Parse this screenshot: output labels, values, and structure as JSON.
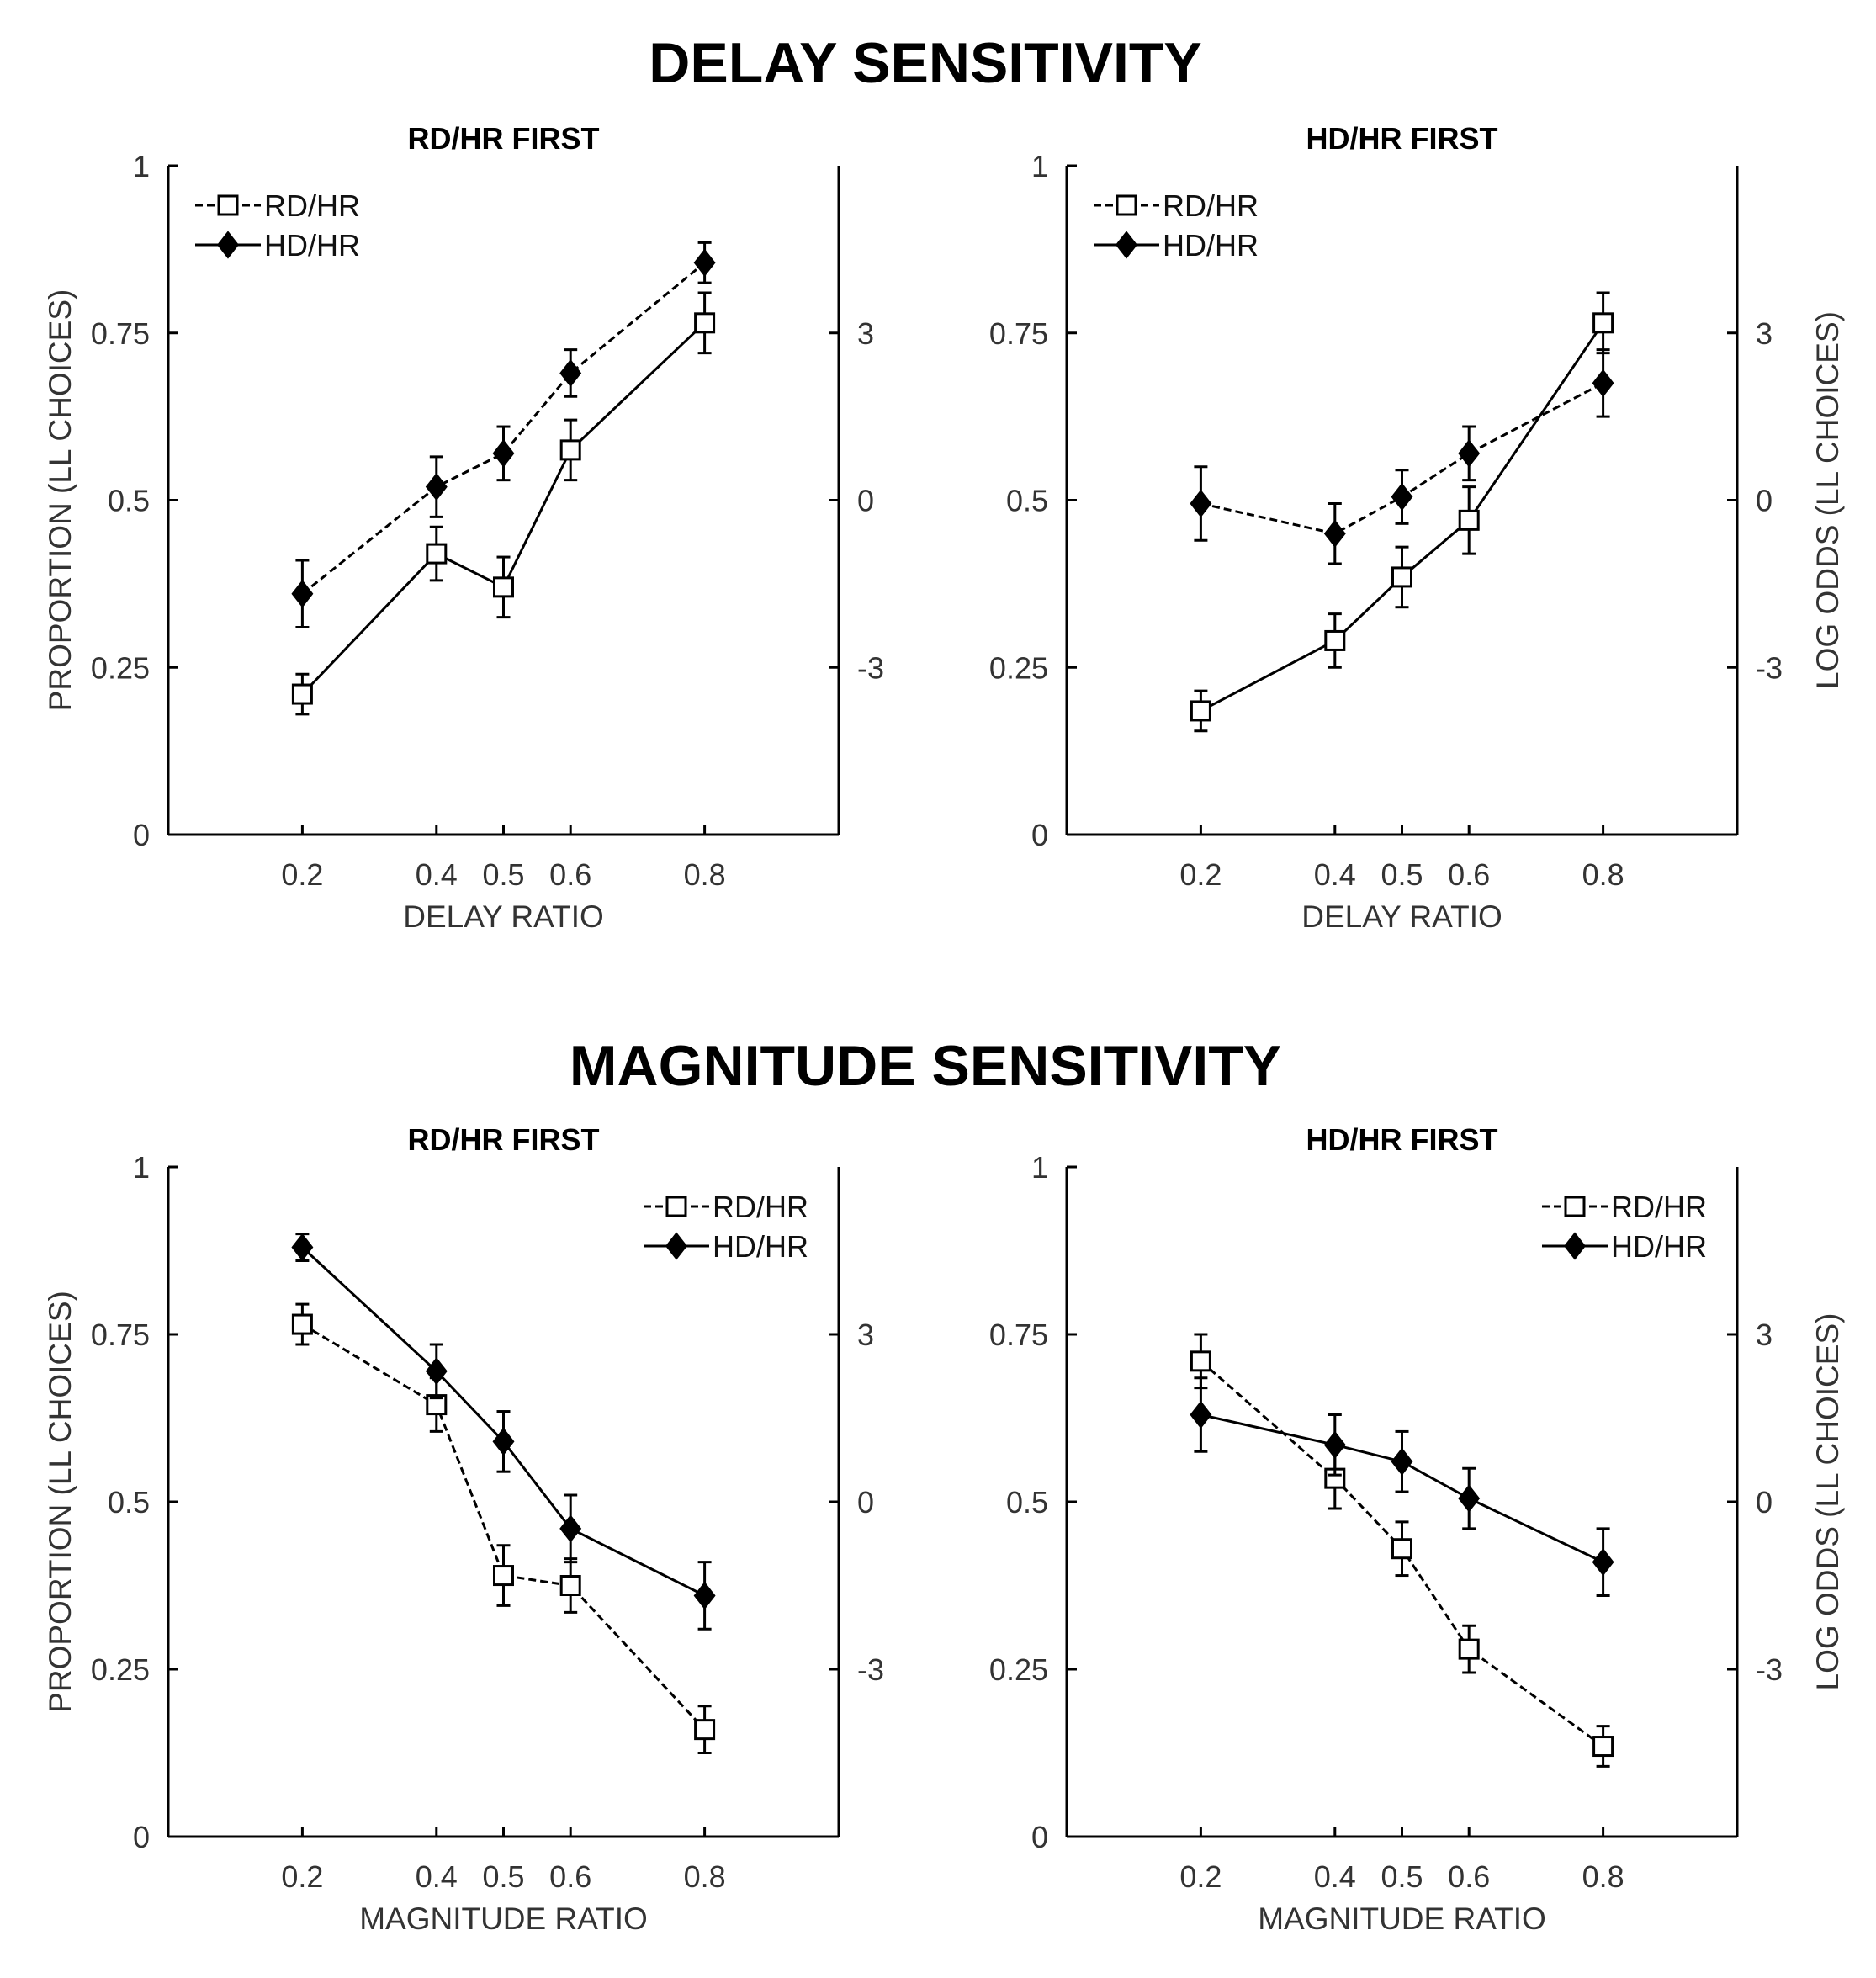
{
  "figure": {
    "delay_title": "DELAY SENSITIVITY",
    "magnitude_title": "MAGNITUDE SENSITIVITY"
  },
  "chart_data": [
    {
      "type": "line",
      "section": "DELAY SENSITIVITY",
      "title": "RD/HR FIRST",
      "xlabel": "DELAY RATIO",
      "ylabel": "PROPORTION (LL CHOICES)",
      "y2label": "",
      "x": [
        0.2,
        0.4,
        0.5,
        0.6,
        0.8
      ],
      "x_tick_labels": [
        "0.2",
        "0.4",
        "0.5",
        "0.6",
        "0.8"
      ],
      "xlim": [
        0.0,
        1.0
      ],
      "ylim": [
        0,
        1
      ],
      "y_tick_values": [
        0,
        0.25,
        0.5,
        0.75,
        1
      ],
      "y_tick_labels": [
        "0",
        "0.25",
        "0.5",
        "0.75",
        "1"
      ],
      "y2_tick_values": [
        0.25,
        0.5,
        0.75
      ],
      "y2_tick_labels": [
        "-3",
        "0",
        "3"
      ],
      "legend_position": "top-left",
      "series": [
        {
          "name": "RD/HR",
          "marker": "open-square",
          "line": "solid",
          "legend_line": "dashed",
          "values": [
            0.21,
            0.42,
            0.37,
            0.575,
            0.765
          ],
          "errors": [
            0.03,
            0.04,
            0.045,
            0.045,
            0.045
          ]
        },
        {
          "name": "HD/HR",
          "marker": "filled-diamond",
          "line": "dashed",
          "legend_line": "solid",
          "values": [
            0.36,
            0.52,
            0.57,
            0.69,
            0.855
          ],
          "errors": [
            0.05,
            0.045,
            0.04,
            0.035,
            0.03
          ]
        }
      ]
    },
    {
      "type": "line",
      "section": "DELAY SENSITIVITY",
      "title": "HD/HR FIRST",
      "xlabel": "DELAY RATIO",
      "ylabel": "",
      "y2label": "LOG ODDS (LL CHOICES)",
      "x": [
        0.2,
        0.4,
        0.5,
        0.6,
        0.8
      ],
      "x_tick_labels": [
        "0.2",
        "0.4",
        "0.5",
        "0.6",
        "0.8"
      ],
      "xlim": [
        0.0,
        1.0
      ],
      "ylim": [
        0,
        1
      ],
      "y_tick_values": [
        0,
        0.25,
        0.5,
        0.75,
        1
      ],
      "y_tick_labels": [
        "0",
        "0.25",
        "0.5",
        "0.75",
        "1"
      ],
      "y2_tick_values": [
        0.25,
        0.5,
        0.75
      ],
      "y2_tick_labels": [
        "-3",
        "0",
        "3"
      ],
      "legend_position": "top-left",
      "series": [
        {
          "name": "RD/HR",
          "marker": "open-square",
          "line": "solid",
          "legend_line": "dashed",
          "values": [
            0.185,
            0.29,
            0.385,
            0.47,
            0.765
          ],
          "errors": [
            0.03,
            0.04,
            0.045,
            0.05,
            0.045
          ]
        },
        {
          "name": "HD/HR",
          "marker": "filled-diamond",
          "line": "dashed",
          "legend_line": "solid",
          "values": [
            0.495,
            0.45,
            0.505,
            0.57,
            0.675
          ],
          "errors": [
            0.055,
            0.045,
            0.04,
            0.04,
            0.05
          ]
        }
      ]
    },
    {
      "type": "line",
      "section": "MAGNITUDE SENSITIVITY",
      "title": "RD/HR FIRST",
      "xlabel": "MAGNITUDE RATIO",
      "ylabel": "PROPORTION (LL CHOICES)",
      "y2label": "",
      "x": [
        0.2,
        0.4,
        0.5,
        0.6,
        0.8
      ],
      "x_tick_labels": [
        "0.2",
        "0.4",
        "0.5",
        "0.6",
        "0.8"
      ],
      "xlim": [
        0.0,
        1.0
      ],
      "ylim": [
        0,
        1
      ],
      "y_tick_values": [
        0,
        0.25,
        0.5,
        0.75,
        1
      ],
      "y_tick_labels": [
        "0",
        "0.25",
        "0.5",
        "0.75",
        "1"
      ],
      "y2_tick_values": [
        0.25,
        0.5,
        0.75
      ],
      "y2_tick_labels": [
        "-3",
        "0",
        "3"
      ],
      "legend_position": "top-right",
      "series": [
        {
          "name": "RD/HR",
          "marker": "open-square",
          "line": "dashed",
          "legend_line": "dashed",
          "values": [
            0.765,
            0.645,
            0.39,
            0.375,
            0.16
          ],
          "errors": [
            0.03,
            0.04,
            0.045,
            0.04,
            0.035
          ]
        },
        {
          "name": "HD/HR",
          "marker": "filled-diamond",
          "line": "solid",
          "legend_line": "solid",
          "values": [
            0.88,
            0.695,
            0.59,
            0.46,
            0.36
          ],
          "errors": [
            0.02,
            0.04,
            0.045,
            0.05,
            0.05
          ]
        }
      ]
    },
    {
      "type": "line",
      "section": "MAGNITUDE SENSITIVITY",
      "title": "HD/HR FIRST",
      "xlabel": "MAGNITUDE RATIO",
      "ylabel": "",
      "y2label": "LOG ODDS (LL CHOICES)",
      "x": [
        0.2,
        0.4,
        0.5,
        0.6,
        0.8
      ],
      "x_tick_labels": [
        "0.2",
        "0.4",
        "0.5",
        "0.6",
        "0.8"
      ],
      "xlim": [
        0.0,
        1.0
      ],
      "ylim": [
        0,
        1
      ],
      "y_tick_values": [
        0,
        0.25,
        0.5,
        0.75,
        1
      ],
      "y_tick_labels": [
        "0",
        "0.25",
        "0.5",
        "0.75",
        "1"
      ],
      "y2_tick_values": [
        0.25,
        0.5,
        0.75
      ],
      "y2_tick_labels": [
        "-3",
        "0",
        "3"
      ],
      "legend_position": "top-right",
      "series": [
        {
          "name": "RD/HR",
          "marker": "open-square",
          "line": "dashed",
          "legend_line": "dashed",
          "values": [
            0.71,
            0.535,
            0.43,
            0.28,
            0.135
          ],
          "errors": [
            0.04,
            0.045,
            0.04,
            0.035,
            0.03
          ]
        },
        {
          "name": "HD/HR",
          "marker": "filled-diamond",
          "line": "solid",
          "legend_line": "solid",
          "values": [
            0.63,
            0.585,
            0.56,
            0.505,
            0.41
          ],
          "errors": [
            0.055,
            0.045,
            0.045,
            0.045,
            0.05
          ]
        }
      ]
    }
  ]
}
